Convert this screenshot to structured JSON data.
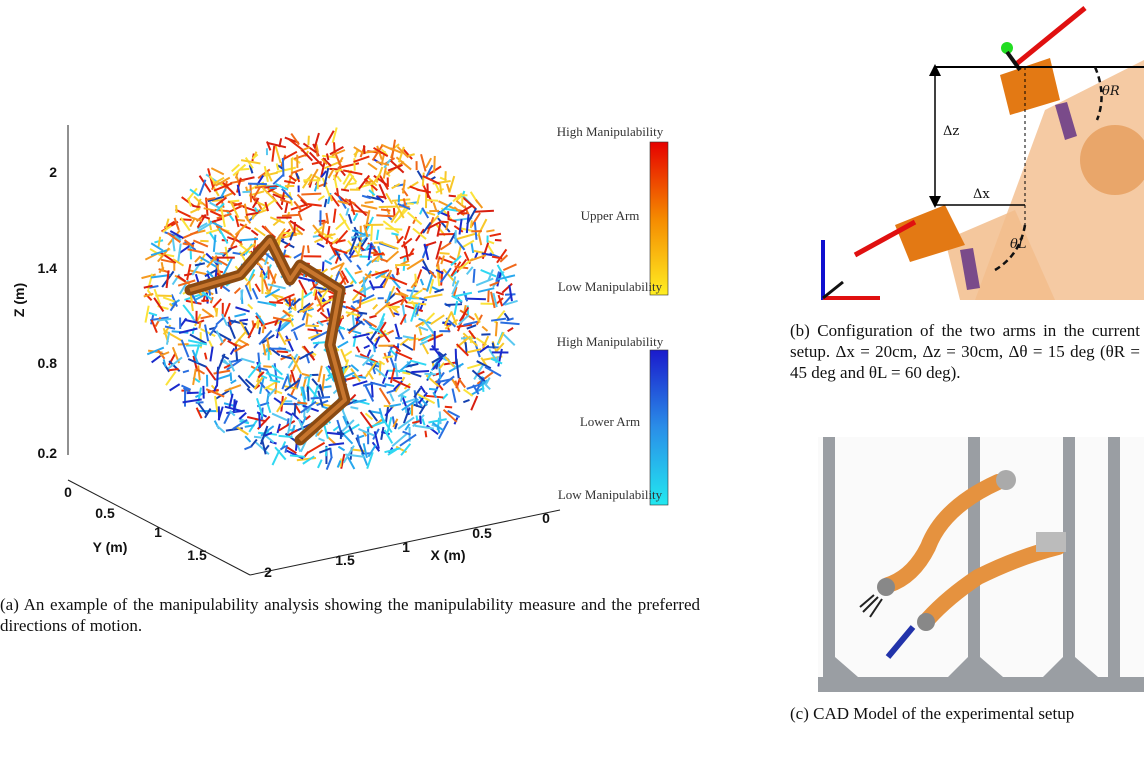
{
  "figure_a": {
    "z_axis": {
      "label": "Z (m)",
      "ticks": [
        2,
        1.4,
        0.8,
        0.2
      ]
    },
    "y_axis": {
      "label": "Y (m)",
      "ticks": [
        0,
        0.5,
        1,
        1.5
      ]
    },
    "x_axis": {
      "label": "X (m)",
      "ticks": [
        2,
        1.5,
        1,
        0.5,
        0
      ]
    },
    "upper_bar": {
      "high": "High Manipulability",
      "name": "Upper Arm",
      "low": "Low Manipulability"
    },
    "lower_bar": {
      "high": "High Manipulability",
      "name": "Lower Arm",
      "low": "Low Manipulability"
    },
    "caption": {
      "label": "(a)",
      "text": "An example of the manipulability analysis showing the manipulability measure and the preferred directions of motion."
    }
  },
  "figure_b": {
    "labels": {
      "dz": "Δz",
      "dx": "Δx",
      "theta_r": "θR",
      "theta_l": "θL"
    },
    "caption": {
      "label": "(b)",
      "text": "Configuration of the two arms in the current setup. Δx = 20cm, Δz = 30cm, Δθ = 15 deg (θR = 45 deg and θL = 60 deg)."
    }
  },
  "figure_c": {
    "caption": {
      "label": "(c)",
      "text": "CAD Model of the experimental setup"
    }
  }
}
